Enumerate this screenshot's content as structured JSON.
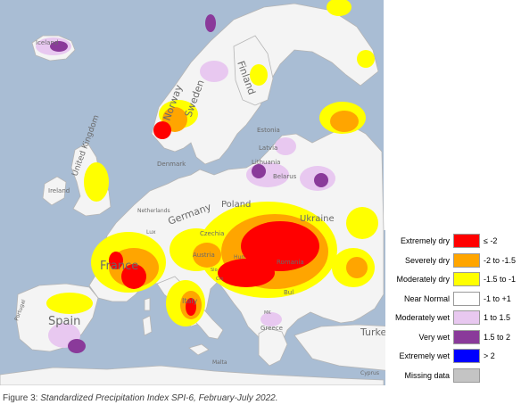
{
  "legend": [
    {
      "label": "Extremely dry",
      "range": "≤ -2",
      "color": "#ff0000"
    },
    {
      "label": "Severely dry",
      "range": "-2 to -1.5",
      "color": "#ffa500"
    },
    {
      "label": "Moderately dry",
      "range": "-1.5 to -1",
      "color": "#ffff00"
    },
    {
      "label": "Near Normal",
      "range": "-1 to +1",
      "color": "#ffffff"
    },
    {
      "label": "Moderately wet",
      "range": "1 to 1.5",
      "color": "#e8c8f0"
    },
    {
      "label": "Very wet",
      "range": "1.5 to 2",
      "color": "#8a3a9a"
    },
    {
      "label": "Extremely wet",
      "range": "> 2",
      "color": "#0000ff"
    },
    {
      "label": "Missing data",
      "range": "",
      "color": "#c4c4c4"
    }
  ],
  "countries": [
    {
      "name": "Iceland"
    },
    {
      "name": "Norway"
    },
    {
      "name": "Sweden"
    },
    {
      "name": "Finland"
    },
    {
      "name": "Estonia"
    },
    {
      "name": "Latvia"
    },
    {
      "name": "Lithuania"
    },
    {
      "name": "Belarus"
    },
    {
      "name": "Denmark"
    },
    {
      "name": "Ireland"
    },
    {
      "name": "United Kingdom"
    },
    {
      "name": "Netherlands"
    },
    {
      "name": "Germany"
    },
    {
      "name": "Poland"
    },
    {
      "name": "Ukraine"
    },
    {
      "name": "Czechia"
    },
    {
      "name": "Austria"
    },
    {
      "name": "Lux"
    },
    {
      "name": "France"
    },
    {
      "name": "Hun"
    },
    {
      "name": "Romania"
    },
    {
      "name": "Bul"
    },
    {
      "name": "Spain"
    },
    {
      "name": "Portugal"
    },
    {
      "name": "Italy"
    },
    {
      "name": "Turkey"
    },
    {
      "name": "Greece"
    },
    {
      "name": "Malta"
    },
    {
      "name": "Cyprus"
    },
    {
      "name": "MK"
    },
    {
      "name": "Cro"
    },
    {
      "name": "Slo"
    }
  ],
  "caption": {
    "prefix": "Figure 3: ",
    "title": "Standardized Precipitation Index SPI-6, February-July 2022."
  }
}
